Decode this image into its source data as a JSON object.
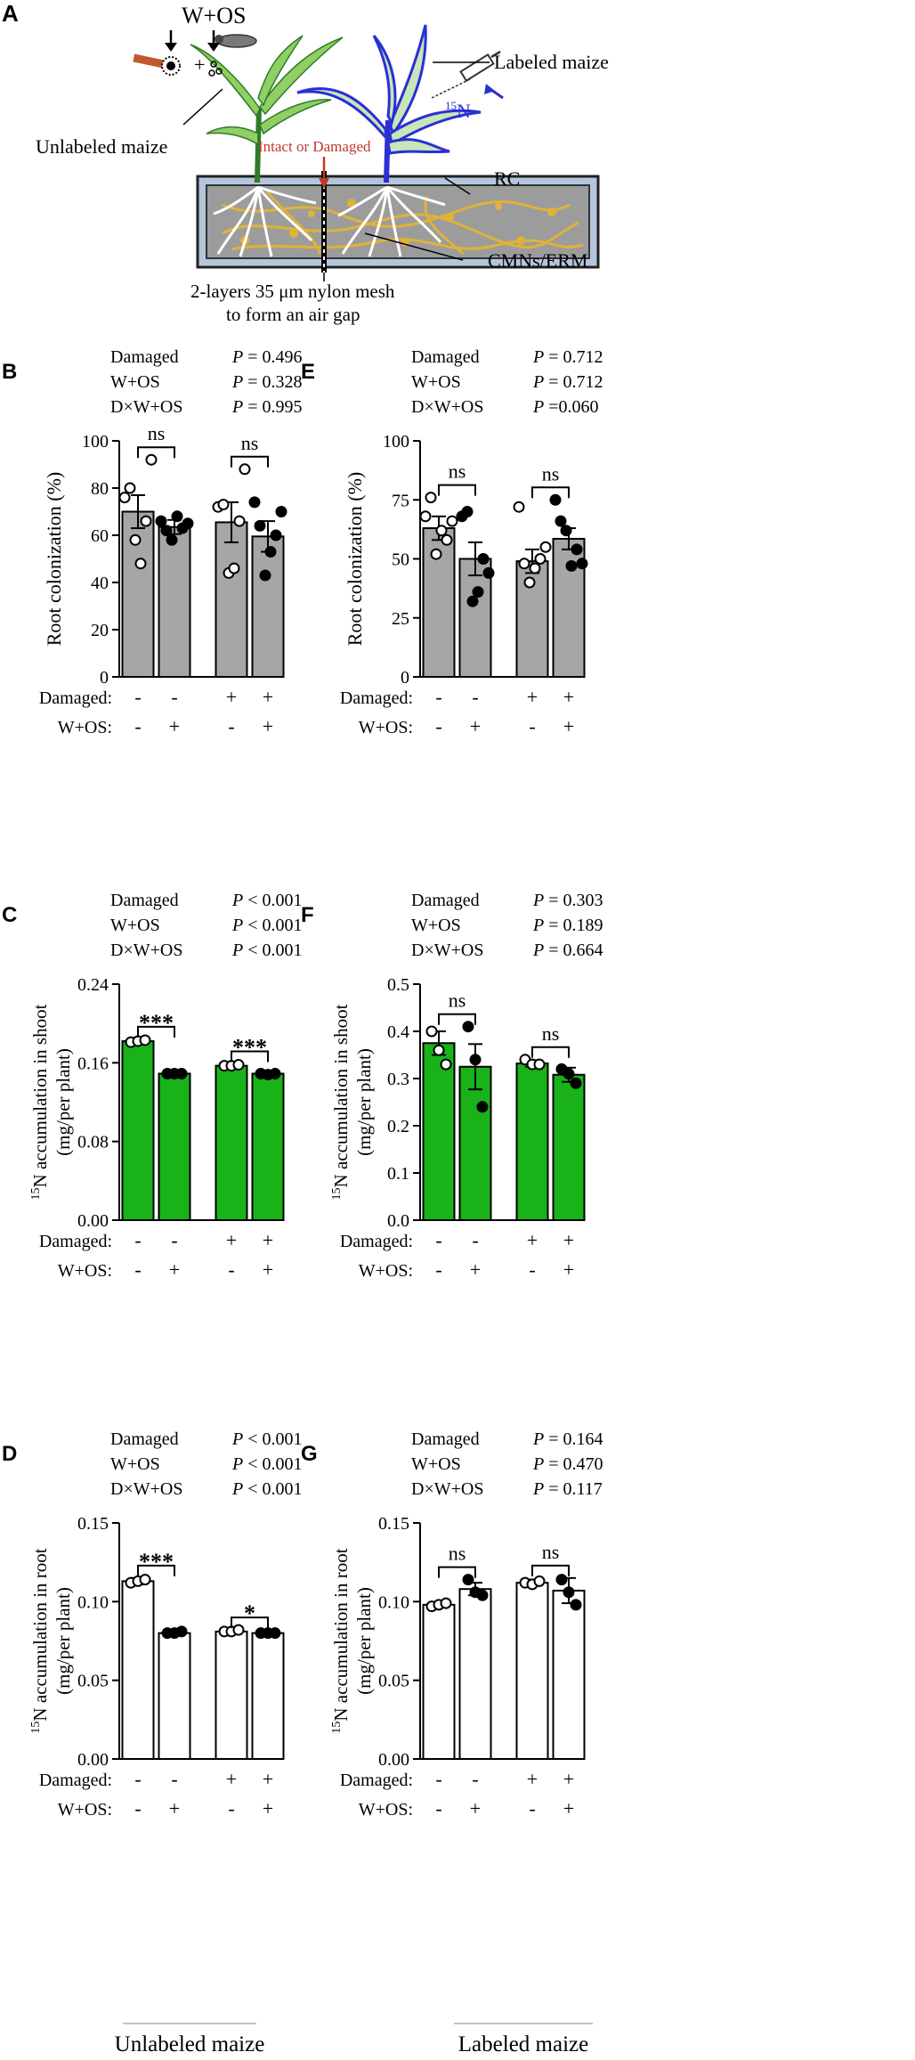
{
  "panel_a": {
    "letter": "A",
    "treatment_label": "W+OS",
    "plus_sign": "+",
    "unlabeled_label": "Unlabeled maize",
    "labeled_label": "Labeled maize",
    "intact_label": "Intact or Damaged",
    "n15_sup": "15",
    "n15_base": "N",
    "rc_label": "RC",
    "cmn_label": "CMNs/ERM",
    "mesh_line1": "2-layers 35 μm nylon mesh",
    "mesh_line2": "to form an air gap",
    "colors": {
      "unlabeled_leaf": "#8fcf63",
      "labeled_leaf": "#2a2fd6",
      "hyphae": "#e0b23a",
      "arrow_red": "#c0392b",
      "arrow_blue": "#2a2fd6"
    }
  },
  "bottom_labels": {
    "left": "Unlabeled maize",
    "right": "Labeled maize"
  },
  "chart_data": [
    {
      "id": "B",
      "type": "bar",
      "letter": "B",
      "stats": [
        [
          "Damaged",
          "P = 0.496"
        ],
        [
          "W+OS",
          "P = 0.328"
        ],
        [
          "D×W+OS",
          "P = 0.995"
        ]
      ],
      "ylabel": "Root colonization (%)",
      "ylabel_sup": "",
      "ylabel2": "",
      "ylim": [
        0,
        100
      ],
      "yticks": [
        "0",
        "20",
        "40",
        "60",
        "80",
        "100"
      ],
      "bar_color": "#a6a6a6",
      "values": [
        70,
        63.5,
        65.5,
        59.5
      ],
      "errors": [
        7,
        3,
        8.5,
        6.5
      ],
      "points": [
        [
          76,
          80,
          58,
          48,
          66,
          92
        ],
        [
          66,
          62,
          58,
          68,
          63,
          65
        ],
        [
          72,
          73,
          44,
          46,
          66,
          88
        ],
        [
          74,
          64,
          43,
          53,
          60,
          70
        ]
      ],
      "point_fill": [
        "open",
        "filled",
        "open",
        "filled"
      ],
      "sig": [
        "ns",
        "ns"
      ],
      "row1_label": "Damaged:",
      "row2_label": "W+OS:",
      "row1": [
        "-",
        "-",
        "+",
        "+"
      ],
      "row2": [
        "-",
        "+",
        "-",
        "+"
      ]
    },
    {
      "id": "E",
      "type": "bar",
      "letter": "E",
      "stats": [
        [
          "Damaged",
          "P = 0.712"
        ],
        [
          "W+OS",
          "P = 0.712"
        ],
        [
          "D×W+OS",
          "P =0.060"
        ]
      ],
      "ylabel": "Root colonization (%)",
      "ylabel_sup": "",
      "ylabel2": "",
      "ylim": [
        0,
        100
      ],
      "yticks": [
        "0",
        "25",
        "50",
        "75",
        "100"
      ],
      "bar_color": "#a6a6a6",
      "values": [
        63,
        50,
        49,
        58.5
      ],
      "errors": [
        5,
        7,
        5,
        4.5
      ],
      "points": [
        [
          68,
          76,
          52,
          62,
          58,
          66
        ],
        [
          68,
          70,
          32,
          36,
          50,
          44
        ],
        [
          72,
          48,
          40,
          46,
          50,
          55
        ],
        [
          75,
          66,
          62,
          47,
          54,
          48
        ]
      ],
      "point_fill": [
        "open",
        "filled",
        "open",
        "filled"
      ],
      "sig": [
        "ns",
        "ns"
      ],
      "row1_label": "Damaged:",
      "row2_label": "W+OS:",
      "row1": [
        "-",
        "-",
        "+",
        "+"
      ],
      "row2": [
        "-",
        "+",
        "-",
        "+"
      ]
    },
    {
      "id": "C",
      "type": "bar",
      "letter": "C",
      "stats": [
        [
          "Damaged",
          "P < 0.001"
        ],
        [
          "W+OS",
          "P < 0.001"
        ],
        [
          "D×W+OS",
          "P < 0.001"
        ]
      ],
      "ylabel": "N accumulation in shoot",
      "ylabel_sup": "15",
      "ylabel2": "(mg/per plant)",
      "ylim": [
        0,
        0.24
      ],
      "yticks": [
        "0.00",
        "0.08",
        "0.16",
        "0.24"
      ],
      "bar_color": "#19b319",
      "values": [
        0.182,
        0.149,
        0.157,
        0.149
      ],
      "errors": [
        0.002,
        0.002,
        0.002,
        0.002
      ],
      "points": [
        [
          0.181,
          0.182,
          0.183
        ],
        [
          0.149,
          0.149,
          0.149
        ],
        [
          0.157,
          0.157,
          0.158
        ],
        [
          0.149,
          0.148,
          0.149
        ]
      ],
      "point_fill": [
        "open",
        "filled",
        "open",
        "filled"
      ],
      "sig": [
        "***",
        "***"
      ],
      "row1_label": "Damaged:",
      "row2_label": "W+OS:",
      "row1": [
        "-",
        "-",
        "+",
        "+"
      ],
      "row2": [
        "-",
        "+",
        "-",
        "+"
      ]
    },
    {
      "id": "F",
      "type": "bar",
      "letter": "F",
      "stats": [
        [
          "Damaged",
          "P = 0.303"
        ],
        [
          "W+OS",
          "P = 0.189"
        ],
        [
          "D×W+OS",
          "P = 0.664"
        ]
      ],
      "ylabel": "N accumulation in shoot",
      "ylabel_sup": "15",
      "ylabel2": "(mg/per plant)",
      "ylim": [
        0,
        0.5
      ],
      "yticks": [
        "0.0",
        "0.1",
        "0.2",
        "0.3",
        "0.4",
        "0.5"
      ],
      "bar_color": "#19b319",
      "values": [
        0.375,
        0.325,
        0.332,
        0.308
      ],
      "errors": [
        0.025,
        0.048,
        0.007,
        0.015
      ],
      "points": [
        [
          0.4,
          0.36,
          0.33
        ],
        [
          0.41,
          0.34,
          0.24
        ],
        [
          0.34,
          0.33,
          0.33
        ],
        [
          0.32,
          0.31,
          0.29
        ]
      ],
      "point_fill": [
        "open",
        "filled",
        "open",
        "filled"
      ],
      "sig": [
        "ns",
        "ns"
      ],
      "row1_label": "Damaged:",
      "row2_label": "W+OS:",
      "row1": [
        "-",
        "-",
        "+",
        "+"
      ],
      "row2": [
        "-",
        "+",
        "-",
        "+"
      ]
    },
    {
      "id": "D",
      "type": "bar",
      "letter": "D",
      "stats": [
        [
          "Damaged",
          "P < 0.001"
        ],
        [
          "W+OS",
          "P < 0.001"
        ],
        [
          "D×W+OS",
          "P < 0.001"
        ]
      ],
      "ylabel": "N accumulation in root",
      "ylabel_sup": "15",
      "ylabel2": "(mg/per plant)",
      "ylim": [
        0,
        0.15
      ],
      "yticks": [
        "0.00",
        "0.05",
        "0.10",
        "0.15"
      ],
      "bar_color": "#ffffff",
      "values": [
        0.113,
        0.08,
        0.081,
        0.08
      ],
      "errors": [
        0.002,
        0.001,
        0.001,
        0.001
      ],
      "points": [
        [
          0.112,
          0.113,
          0.114
        ],
        [
          0.08,
          0.08,
          0.081
        ],
        [
          0.081,
          0.081,
          0.082
        ],
        [
          0.08,
          0.08,
          0.08
        ]
      ],
      "point_fill": [
        "open",
        "filled",
        "open",
        "filled"
      ],
      "sig": [
        "***",
        "*"
      ],
      "row1_label": "Damaged:",
      "row2_label": "W+OS:",
      "row1": [
        "-",
        "-",
        "+",
        "+"
      ],
      "row2": [
        "-",
        "+",
        "-",
        "+"
      ]
    },
    {
      "id": "G",
      "type": "bar",
      "letter": "G",
      "stats": [
        [
          "Damaged",
          "P = 0.164"
        ],
        [
          "W+OS",
          "P = 0.470"
        ],
        [
          "D×W+OS",
          "P = 0.117"
        ]
      ],
      "ylabel": "N accumulation in root",
      "ylabel_sup": "15",
      "ylabel2": "(mg/per plant)",
      "ylim": [
        0,
        0.15
      ],
      "yticks": [
        "0.00",
        "0.05",
        "0.10",
        "0.15"
      ],
      "bar_color": "#ffffff",
      "values": [
        0.098,
        0.108,
        0.112,
        0.107
      ],
      "errors": [
        0.001,
        0.004,
        0.002,
        0.008
      ],
      "points": [
        [
          0.097,
          0.098,
          0.099
        ],
        [
          0.114,
          0.106,
          0.104
        ],
        [
          0.112,
          0.111,
          0.113
        ],
        [
          0.114,
          0.106,
          0.098
        ]
      ],
      "point_fill": [
        "open",
        "filled",
        "open",
        "filled"
      ],
      "sig": [
        "ns",
        "ns"
      ],
      "row1_label": "Damaged:",
      "row2_label": "W+OS:",
      "row1": [
        "-",
        "-",
        "+",
        "+"
      ],
      "row2": [
        "-",
        "+",
        "-",
        "+"
      ]
    }
  ]
}
